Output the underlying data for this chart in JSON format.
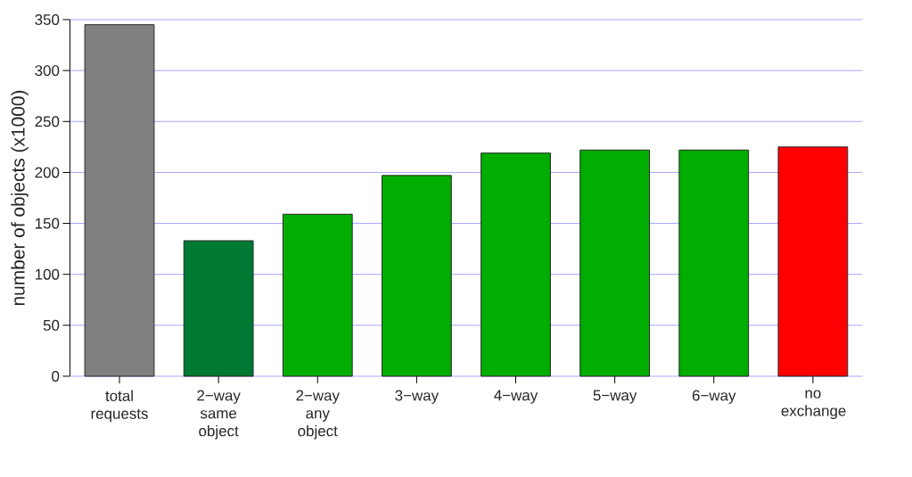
{
  "chart_data": {
    "type": "bar",
    "ylabel": "number of objects (x1000)",
    "categories": [
      "total requests",
      "2−way same object",
      "2−way any object",
      "3−way",
      "4−way",
      "5−way",
      "6−way",
      "no exchange"
    ],
    "values": [
      345,
      133,
      159,
      197,
      219,
      222,
      222,
      225
    ],
    "colors": [
      "#808080",
      "#007a33",
      "#00ad00",
      "#00ad00",
      "#00ad00",
      "#00ad00",
      "#00ad00",
      "#ff0000"
    ],
    "ylim": [
      0,
      350
    ],
    "yticks": [
      0,
      50,
      100,
      150,
      200,
      250,
      300,
      350
    ],
    "grid": "y"
  }
}
